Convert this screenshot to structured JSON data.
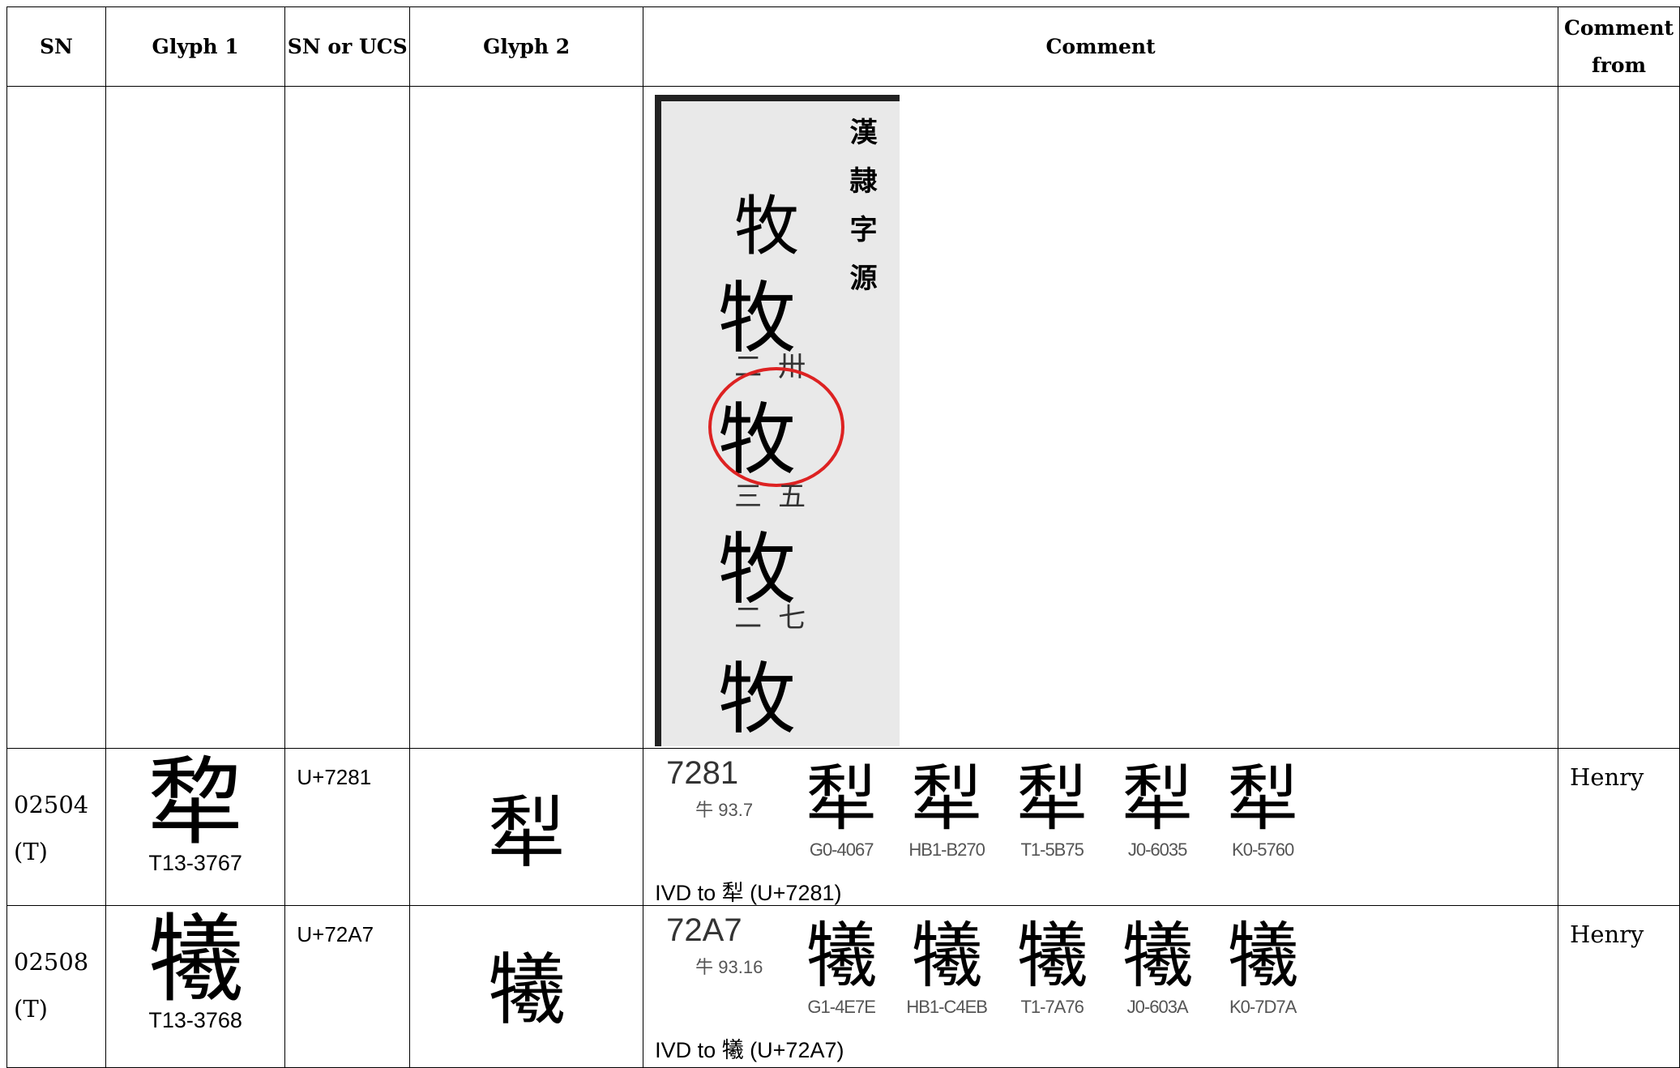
{
  "table": {
    "headers": [
      "SN",
      "Glyph 1",
      "SN or UCS",
      "Glyph 2",
      "Comment",
      "Comment from"
    ],
    "evidence": {
      "title": "漢隷字源",
      "glyphs": [
        "牧",
        "牧",
        "牧",
        "牧",
        "牧"
      ],
      "notes": [
        "二卅",
        "三五",
        "二七"
      ]
    },
    "rows": [
      {
        "sn": "02504",
        "source": "(T)",
        "glyph1": "犂",
        "glyph1_code": "T13-3767",
        "ucs": "U+7281",
        "glyph2": "犁",
        "comment": {
          "code": "7281",
          "radical": "牛 93.7",
          "glyphs": [
            "犁",
            "犁",
            "犁",
            "犁",
            "犁"
          ],
          "sources": [
            "G0-4067",
            "HB1-B270",
            "T1-5B75",
            "J0-6035",
            "K0-5760"
          ],
          "note": "IVD to 犁 (U+7281)"
        },
        "from": "Henry"
      },
      {
        "sn": "02508",
        "source": "(T)",
        "glyph1": "犧",
        "glyph1_code": "T13-3768",
        "ucs": "U+72A7",
        "glyph2": "犧",
        "comment": {
          "code": "72A7",
          "radical": "牛 93.16",
          "glyphs": [
            "犧",
            "犧",
            "犧",
            "犧",
            "犧"
          ],
          "sources": [
            "G1-4E7E",
            "HB1-C4EB",
            "T1-7A76",
            "J0-603A",
            "K0-7D7A"
          ],
          "note": "IVD to 犧 (U+72A7)"
        },
        "from": "Henry"
      }
    ]
  }
}
